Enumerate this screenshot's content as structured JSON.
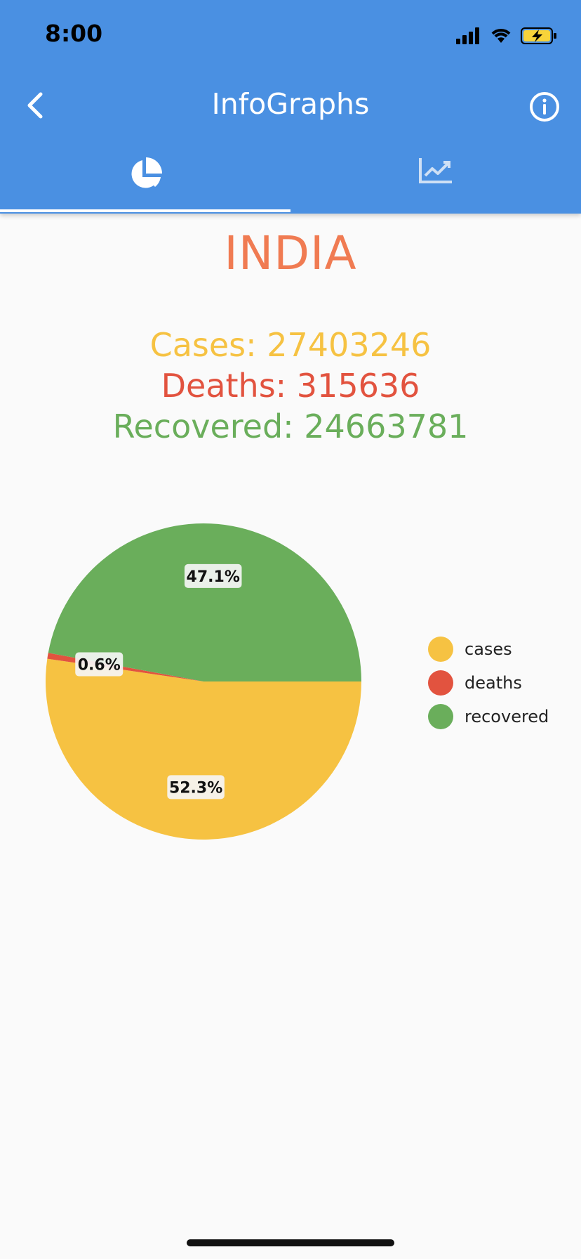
{
  "status_bar": {
    "time": "8:00"
  },
  "header": {
    "title": "InfoGraphs"
  },
  "tabs": [
    {
      "icon": "pie-chart-icon"
    },
    {
      "icon": "line-chart-icon"
    }
  ],
  "country": "INDIA",
  "stats": {
    "cases": "Cases: 27403246",
    "deaths": "Deaths: 315636",
    "recovered": "Recovered: 24663781"
  },
  "chart_data": {
    "type": "pie",
    "categories": [
      "cases",
      "deaths",
      "recovered"
    ],
    "values": [
      52.3,
      0.6,
      47.1
    ],
    "labels": [
      "52.3%",
      "0.6%",
      "47.1%"
    ],
    "colors": [
      "#f6c242",
      "#e2533f",
      "#6aae5b"
    ],
    "legend": "right"
  },
  "colors": {
    "appbar": "#4a90e2",
    "country": "#f07b52"
  }
}
